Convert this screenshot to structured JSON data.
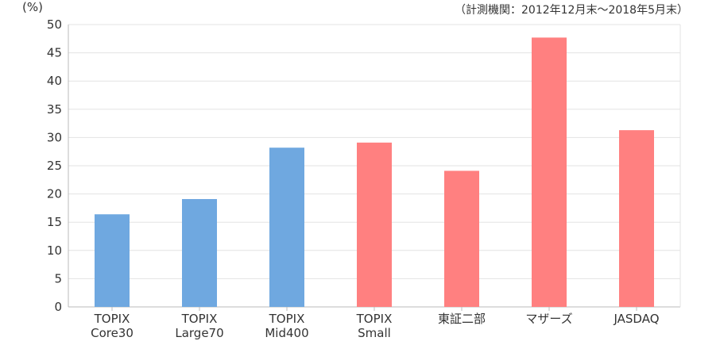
{
  "chart_data": {
    "type": "bar",
    "ylabel": "(%)",
    "note": "（計測機関：2012年12月末～2018年5月末）",
    "ylim": [
      0,
      50
    ],
    "yticks": [
      0,
      5,
      10,
      15,
      20,
      25,
      30,
      35,
      40,
      45,
      50
    ],
    "categories": [
      [
        "TOPIX",
        "Core30"
      ],
      [
        "TOPIX",
        "Large70"
      ],
      [
        "TOPIX",
        "Mid400"
      ],
      [
        "TOPIX",
        "Small"
      ],
      [
        "東証二部"
      ],
      [
        "マザーズ"
      ],
      [
        "JASDAQ"
      ]
    ],
    "values": [
      16.4,
      19.1,
      28.2,
      29.1,
      24.1,
      47.7,
      31.3
    ],
    "bar_colors": [
      "#6fa8e0",
      "#6fa8e0",
      "#6fa8e0",
      "#ff8080",
      "#ff8080",
      "#ff8080",
      "#ff8080"
    ],
    "grid": true
  }
}
